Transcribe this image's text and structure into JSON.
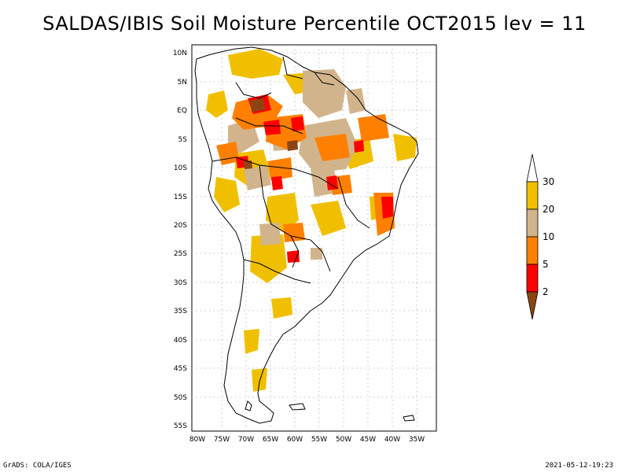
{
  "title": "SALDAS/IBIS Soil Moisture Percentile OCT2015 lev = 11",
  "map": {
    "lat_labels": [
      "10N",
      "5N",
      "EQ",
      "5S",
      "10S",
      "15S",
      "20S",
      "25S",
      "30S",
      "35S",
      "40S",
      "45S",
      "50S",
      "55S"
    ],
    "lon_labels": [
      "80W",
      "75W",
      "70W",
      "65W",
      "60W",
      "55W",
      "50W",
      "45W",
      "40W",
      "35W"
    ]
  },
  "legend": {
    "labels": [
      "30",
      "20",
      "10",
      "5",
      "2"
    ],
    "colors": {
      "gt30": "#ffffff",
      "20_30": "#f0c000",
      "10_20": "#d2b48c",
      "5_10": "#ff8000",
      "2_5": "#ff0000",
      "lt2": "#8b4513"
    }
  },
  "footer": {
    "left": "GrADS: COLA/IGES",
    "right": "2021-05-12-19:23"
  }
}
